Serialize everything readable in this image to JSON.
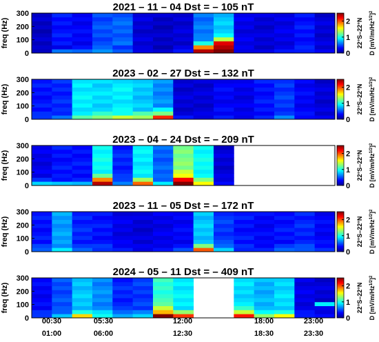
{
  "chart_data": {
    "type": "heatmap",
    "colormap": "jet",
    "ylabel": "freq (Hz)",
    "ylim": [
      0,
      300
    ],
    "yticks": [
      0,
      100,
      200,
      300
    ],
    "colorbar": {
      "range": [
        0,
        2.5
      ],
      "ticks": [
        0,
        1,
        2
      ],
      "label_top": "22°S–22°N",
      "label_bottom": "D [mV/m/Hz^1/2]^2",
      "label_bottom_main": "D [mV/m/Hz",
      "label_bottom_sup": "1/2",
      "label_bottom_close": "]",
      "label_bottom_exp": "2"
    },
    "x_axis": {
      "row1": [
        "00:30",
        "05:30",
        "12:00",
        "18:00",
        "23:00"
      ],
      "row2": [
        "01:00",
        "06:00",
        "12:30",
        "18:30",
        "23:30"
      ]
    },
    "freq_bins": [
      15,
      45,
      75,
      105,
      135,
      165,
      195,
      225,
      255,
      285
    ],
    "panels": [
      {
        "title": "2021 – 11 – 04 Dst = – 105 nT",
        "columns": [
          {
            "bg": 0.15,
            "low": [
              0.2,
              0.15
            ]
          },
          {
            "bg": 0.35,
            "low": [
              0.6,
              0.3
            ]
          },
          {
            "bg": 0.3,
            "low": [
              0.5,
              0.35
            ]
          },
          {
            "bg": 0.5,
            "low": [
              0.7,
              0.5
            ]
          },
          {
            "bg": 0.55,
            "low": [
              0.5,
              0.45
            ]
          },
          {
            "bg": 0.2,
            "low": [
              0.3,
              0.2
            ]
          },
          {
            "bg": 0.15,
            "low": [
              0.2,
              0.15
            ]
          },
          {
            "bg": 0.2,
            "low": [
              0.3,
              0.25
            ]
          },
          {
            "bg": 0.6,
            "low": [
              2.4,
              1.8,
              1.0,
              0.7
            ]
          },
          {
            "bg": 0.8,
            "low": [
              2.5,
              2.4,
              2.2,
              1.4,
              1.0
            ]
          },
          {
            "bg": 0.25,
            "low": [
              0.3,
              0.25
            ]
          },
          {
            "bg": 0.2,
            "low": [
              0.25,
              0.2
            ]
          },
          {
            "bg": 0.25,
            "low": [
              0.3,
              0.25
            ]
          },
          {
            "bg": 0.35,
            "low": [
              0.4,
              0.35
            ]
          },
          {
            "bg": 0.2,
            "low": [
              0.25,
              0.2
            ]
          }
        ]
      },
      {
        "title": "2023 – 02 – 27 Dst = – 132 nT",
        "columns": [
          {
            "bg": 0.35,
            "low": [
              0.5,
              0.4
            ]
          },
          {
            "bg": 0.4,
            "low": [
              0.6,
              0.45
            ]
          },
          {
            "bg": 0.9,
            "low": [
              1.1,
              0.9
            ]
          },
          {
            "bg": 0.85,
            "low": [
              1.3,
              1.0
            ]
          },
          {
            "bg": 0.9,
            "low": [
              1.4,
              1.0
            ]
          },
          {
            "bg": 0.8,
            "low": [
              1.4,
              1.1
            ]
          },
          {
            "bg": 0.65,
            "low": [
              2.1,
              1.3,
              0.9
            ]
          },
          {
            "bg": 0.2,
            "low": [
              0.3,
              0.2
            ]
          },
          {
            "bg": 0.2,
            "low": [
              0.25,
              0.2
            ]
          },
          {
            "bg": 0.3,
            "low": [
              0.35,
              0.3
            ]
          },
          {
            "bg": 0.25,
            "low": [
              0.3,
              0.25
            ]
          },
          {
            "bg": 0.35,
            "low": [
              0.4,
              0.35
            ]
          },
          {
            "bg": 0.45,
            "low": [
              0.6,
              0.45
            ]
          },
          {
            "bg": 0.3,
            "low": [
              0.35,
              0.3
            ]
          },
          {
            "bg": 0.2,
            "low": [
              0.25,
              0.2
            ]
          }
        ]
      },
      {
        "title": "2023 – 04 – 24 Dst = – 209 nT",
        "columns": [
          {
            "bg": 0.25,
            "low": [
              0.9,
              0.4
            ]
          },
          {
            "bg": 0.35,
            "low": [
              0.8,
              0.4
            ]
          },
          {
            "bg": 0.35,
            "low": [
              0.7,
              0.4
            ]
          },
          {
            "bg": 0.95,
            "low": [
              2.4,
              1.8,
              1.2
            ]
          },
          {
            "bg": 0.4,
            "low": [
              0.6,
              0.5
            ]
          },
          {
            "bg": 0.9,
            "low": [
              2.0,
              1.3
            ]
          },
          {
            "bg": 0.55,
            "low": [
              0.9,
              0.6
            ]
          },
          {
            "bg": 1.25,
            "low": [
              2.5,
              2.2,
              1.6,
              1.4
            ]
          },
          {
            "bg": 0.95,
            "low": [
              1.6,
              1.2
            ]
          },
          {
            "bg": 0.2,
            "low": [
              0.3,
              0.25
            ]
          },
          null,
          null,
          null,
          null,
          null
        ]
      },
      {
        "title": "2023 – 11 – 05 Dst = – 172 nT",
        "columns": [
          {
            "bg": 0.35,
            "low": [
              0.6,
              0.45
            ]
          },
          {
            "bg": 0.7,
            "low": [
              0.9,
              0.7
            ]
          },
          {
            "bg": 0.4,
            "low": [
              0.5,
              0.45
            ]
          },
          {
            "bg": 0.35,
            "low": [
              0.45,
              0.4
            ]
          },
          {
            "bg": 0.25,
            "low": [
              0.35,
              0.3
            ]
          },
          {
            "bg": 0.2,
            "low": [
              0.3,
              0.25
            ]
          },
          {
            "bg": 0.25,
            "low": [
              0.35,
              0.3
            ]
          },
          {
            "bg": 0.3,
            "low": [
              0.45,
              0.35
            ]
          },
          {
            "bg": 0.8,
            "low": [
              2.0,
              1.2
            ]
          },
          {
            "bg": 0.45,
            "low": [
              0.8,
              0.6
            ]
          },
          {
            "bg": 0.35,
            "low": [
              0.45,
              0.4
            ]
          },
          {
            "bg": 0.3,
            "low": [
              0.4,
              0.35
            ]
          },
          {
            "bg": 0.35,
            "low": [
              0.5,
              0.45
            ]
          },
          {
            "bg": 0.4,
            "low": [
              0.55,
              0.45
            ]
          },
          {
            "bg": 0.3,
            "low": [
              0.4,
              0.35
            ]
          }
        ]
      },
      {
        "title": "2024 – 05 – 11 Dst = – 409 nT",
        "columns": [
          {
            "bg": 0.3,
            "low": [
              0.5,
              0.4
            ]
          },
          {
            "bg": 0.5,
            "low": [
              0.8,
              0.6
            ]
          },
          {
            "bg": 0.8,
            "low": [
              1.6,
              1.0
            ]
          },
          {
            "bg": 0.65,
            "low": [
              1.0,
              0.8
            ]
          },
          {
            "bg": 0.4,
            "low": [
              0.7,
              0.6
            ]
          },
          {
            "bg": 0.45,
            "low": [
              0.9,
              0.6
            ]
          },
          {
            "bg": 1.05,
            "low": [
              2.5,
              1.8,
              1.4,
              1.2
            ]
          },
          {
            "bg": 0.9,
            "low": [
              2.0,
              1.3
            ]
          },
          null,
          null,
          {
            "bg": 0.85,
            "low": [
              2.2,
              1.4,
              1.1
            ]
          },
          {
            "bg": 0.75,
            "low": [
              1.3,
              1.0
            ]
          },
          {
            "bg": 0.85,
            "low": [
              1.5,
              1.0
            ]
          },
          {
            "bg": 0.25,
            "low": [
              0.4,
              0.3
            ]
          },
          {
            "bg": 0.2,
            "low": [
              0.3,
              0.25
            ],
            "band": {
              "freq": 105,
              "value": 0.9
            }
          }
        ]
      }
    ]
  }
}
